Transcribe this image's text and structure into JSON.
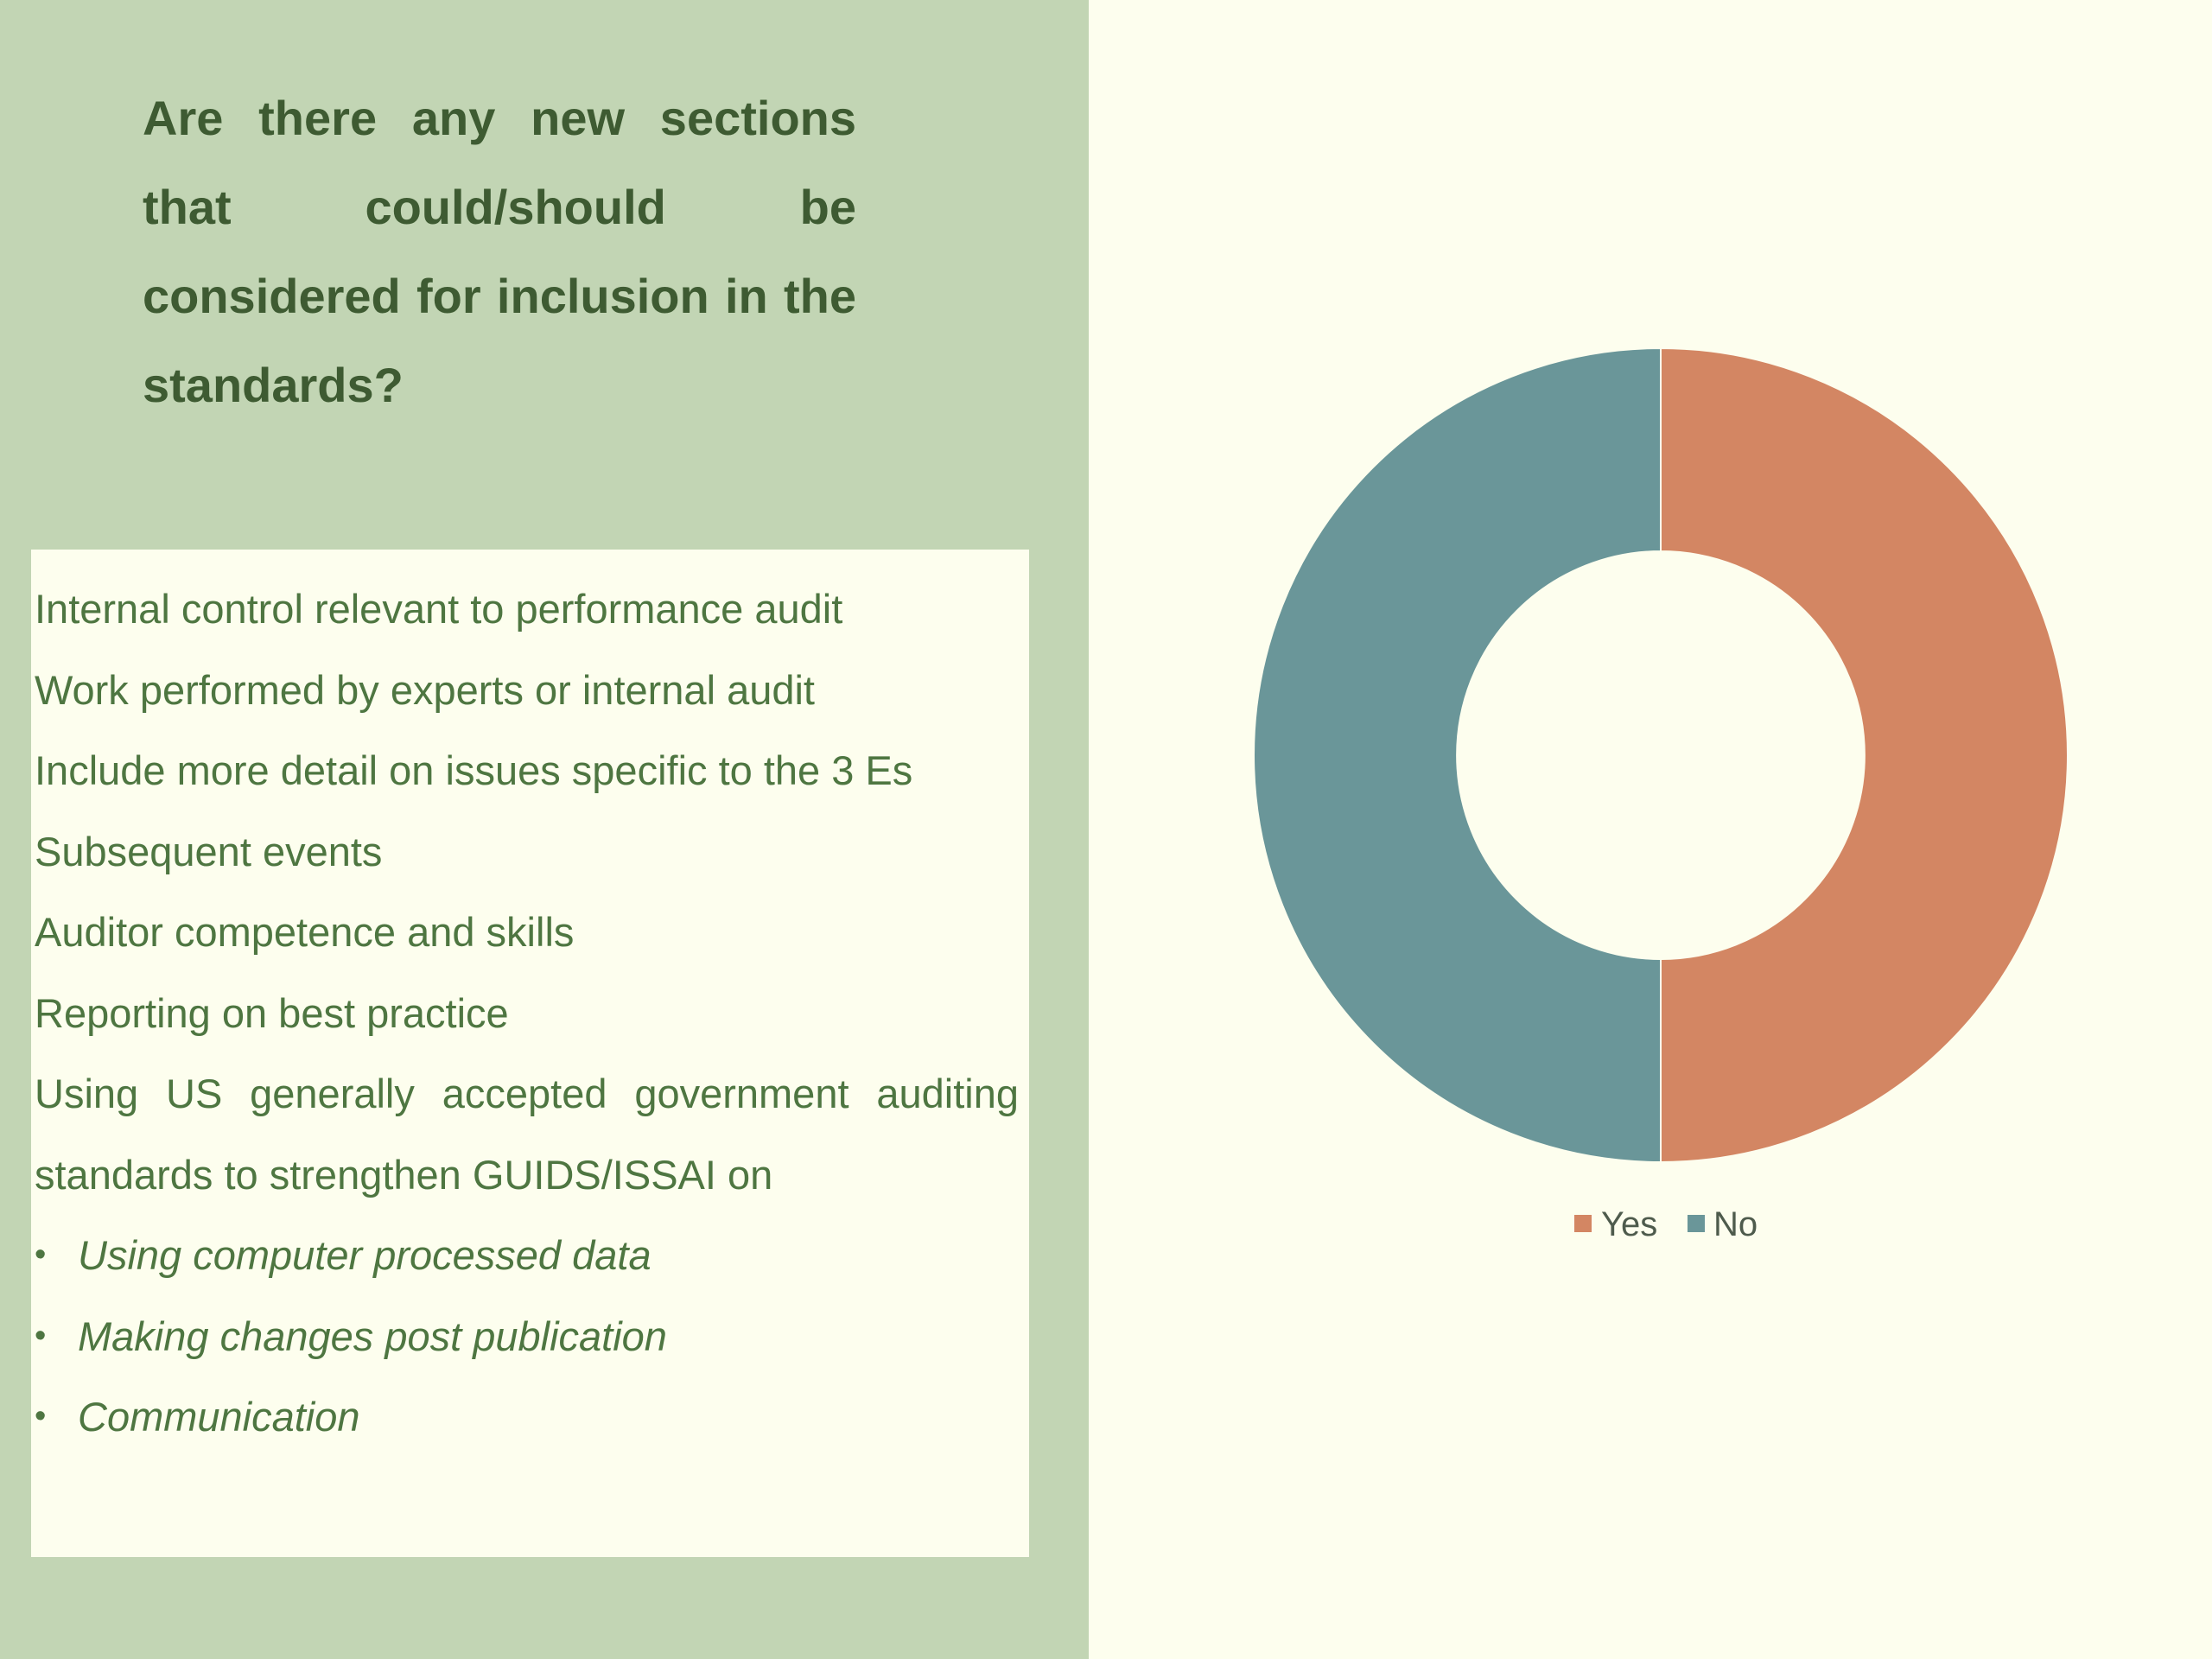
{
  "question": {
    "title": "Are there any new sections that could/should be considered for inclusion in the standards?"
  },
  "answers": {
    "items": [
      "Internal control relevant to performance audit",
      "Work performed by experts or internal audit",
      "Include more detail on issues specific to the 3 Es",
      "Subsequent events",
      "Auditor competence and skills",
      "Reporting on best practice",
      "Using US generally accepted government auditing standards to strengthen GUIDS/ISSAI on"
    ],
    "sub_items": [
      "Using computer processed data",
      "Making changes post publication",
      "Communication"
    ],
    "bullet": "•"
  },
  "chart_data": {
    "type": "pie",
    "donut": true,
    "categories": [
      "Yes",
      "No"
    ],
    "values": [
      50,
      50
    ],
    "colors": [
      "#d38663",
      "#6a9699"
    ],
    "legend_position": "bottom",
    "title": ""
  }
}
